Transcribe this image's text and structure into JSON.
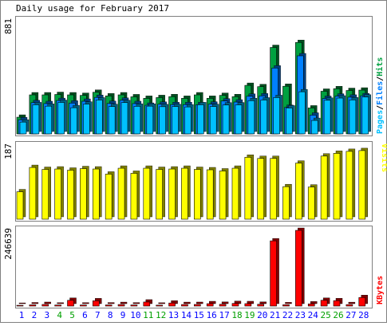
{
  "chart_data": [
    {
      "type": "bar",
      "title": "Daily usage for February 2017",
      "categories": [
        "1",
        "2",
        "3",
        "4",
        "5",
        "6",
        "7",
        "8",
        "9",
        "10",
        "11",
        "12",
        "13",
        "14",
        "15",
        "16",
        "17",
        "18",
        "19",
        "20",
        "21",
        "22",
        "23",
        "24",
        "25",
        "26",
        "27",
        "28"
      ],
      "weekend_days": [
        "4",
        "5",
        "11",
        "12",
        "18",
        "19",
        "25",
        "26"
      ],
      "max_label": "881",
      "ylim": [
        0,
        881
      ],
      "legend": [
        "Pages",
        "Files",
        "Hits"
      ],
      "series": [
        {
          "name": "Hits",
          "color": "#00a040",
          "values": [
            130,
            304,
            304,
            307,
            304,
            300,
            324,
            296,
            304,
            289,
            277,
            283,
            290,
            277,
            304,
            277,
            300,
            290,
            378,
            368,
            673,
            371,
            712,
            202,
            332,
            352,
            338,
            341
          ]
        },
        {
          "name": "Files",
          "color": "#0080ff",
          "values": [
            110,
            243,
            236,
            260,
            240,
            254,
            284,
            237,
            262,
            236,
            223,
            231,
            228,
            228,
            227,
            232,
            256,
            248,
            293,
            296,
            513,
            206,
            608,
            146,
            276,
            294,
            286,
            297
          ]
        },
        {
          "name": "Pages",
          "color": "#00c0ff",
          "values": [
            92,
            227,
            216,
            245,
            204,
            232,
            264,
            213,
            244,
            215,
            216,
            212,
            213,
            210,
            227,
            213,
            225,
            226,
            259,
            264,
            283,
            202,
            328,
            105,
            262,
            279,
            265,
            287
          ]
        }
      ]
    },
    {
      "type": "bar",
      "max_label": "187",
      "ylim": [
        0,
        187
      ],
      "legend": [
        "Visits"
      ],
      "series": [
        {
          "name": "Visits",
          "color": "#ffff00",
          "values": [
            70,
            132,
            127,
            128,
            125,
            129,
            128,
            115,
            130,
            117,
            130,
            127,
            128,
            130,
            127,
            126,
            123,
            130,
            158,
            155,
            155,
            83,
            143,
            82,
            161,
            168,
            173,
            175
          ]
        }
      ]
    },
    {
      "type": "bar",
      "max_label": "246639",
      "ylim": [
        0,
        246639
      ],
      "legend": [
        "KBytes"
      ],
      "series": [
        {
          "name": "KBytes",
          "color": "#ff0000",
          "values": [
            2500,
            3900,
            5300,
            3400,
            18800,
            3500,
            17300,
            3700,
            5100,
            3600,
            13200,
            3000,
            10000,
            5100,
            5300,
            7800,
            5800,
            8600,
            7900,
            6000,
            212500,
            4300,
            246639,
            7200,
            18900,
            17700,
            4900,
            28000
          ]
        }
      ]
    }
  ],
  "colors": {
    "axis_text_weekday": "#0000ff",
    "axis_text_weekend": "#00a000",
    "frame_border": "#808080",
    "panel_background": "#ffffff"
  }
}
